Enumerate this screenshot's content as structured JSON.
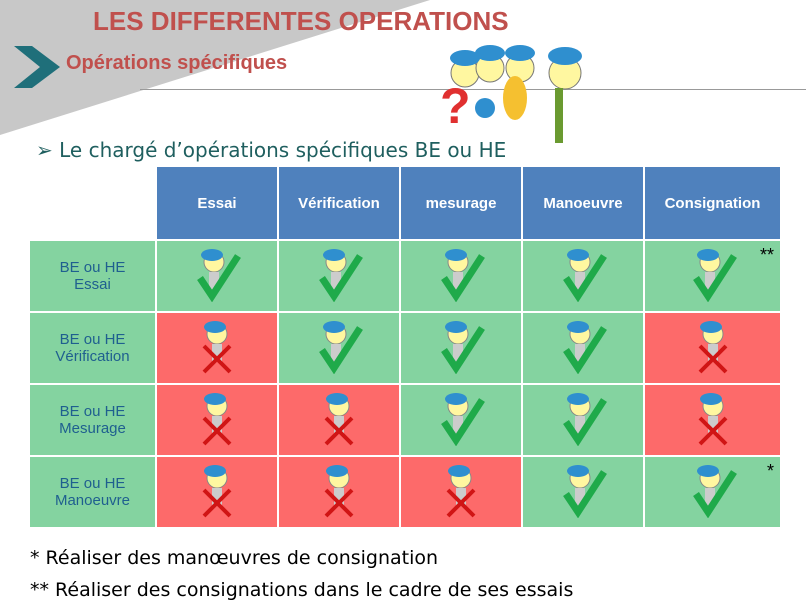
{
  "slide": {
    "title": "LES DIFFERENTES OPERATIONS",
    "subtitle": "Opérations spécifiques",
    "bullet": "➢ Le chargé d’opérations spécifiques BE ou HE"
  },
  "colors": {
    "header": "#4f81bd",
    "allowed": "#84d3a0",
    "forbidden": "#fd6a6a",
    "title": "#c0504d"
  },
  "table": {
    "columns": [
      "Essai",
      "Vérification",
      "mesurage",
      "Manoeuvre",
      "Consignation"
    ],
    "rows": [
      {
        "label": [
          "BE ou HE",
          "Essai"
        ],
        "cells": [
          {
            "ok": true
          },
          {
            "ok": true
          },
          {
            "ok": true
          },
          {
            "ok": true
          },
          {
            "ok": true,
            "mark": "**"
          }
        ]
      },
      {
        "label": [
          "BE ou HE",
          "Vérification"
        ],
        "cells": [
          {
            "ok": false
          },
          {
            "ok": true
          },
          {
            "ok": true
          },
          {
            "ok": true
          },
          {
            "ok": false
          }
        ]
      },
      {
        "label": [
          "BE ou HE",
          "Mesurage"
        ],
        "cells": [
          {
            "ok": false
          },
          {
            "ok": false
          },
          {
            "ok": true
          },
          {
            "ok": true
          },
          {
            "ok": false
          }
        ]
      },
      {
        "label": [
          "BE ou HE",
          "Manoeuvre"
        ],
        "cells": [
          {
            "ok": false
          },
          {
            "ok": false
          },
          {
            "ok": false
          },
          {
            "ok": true
          },
          {
            "ok": true,
            "mark": "*"
          }
        ]
      }
    ]
  },
  "notes": [
    "* Réaliser des manœuvres de consignation",
    "** Réaliser des consignations dans le cadre de ses essais"
  ]
}
